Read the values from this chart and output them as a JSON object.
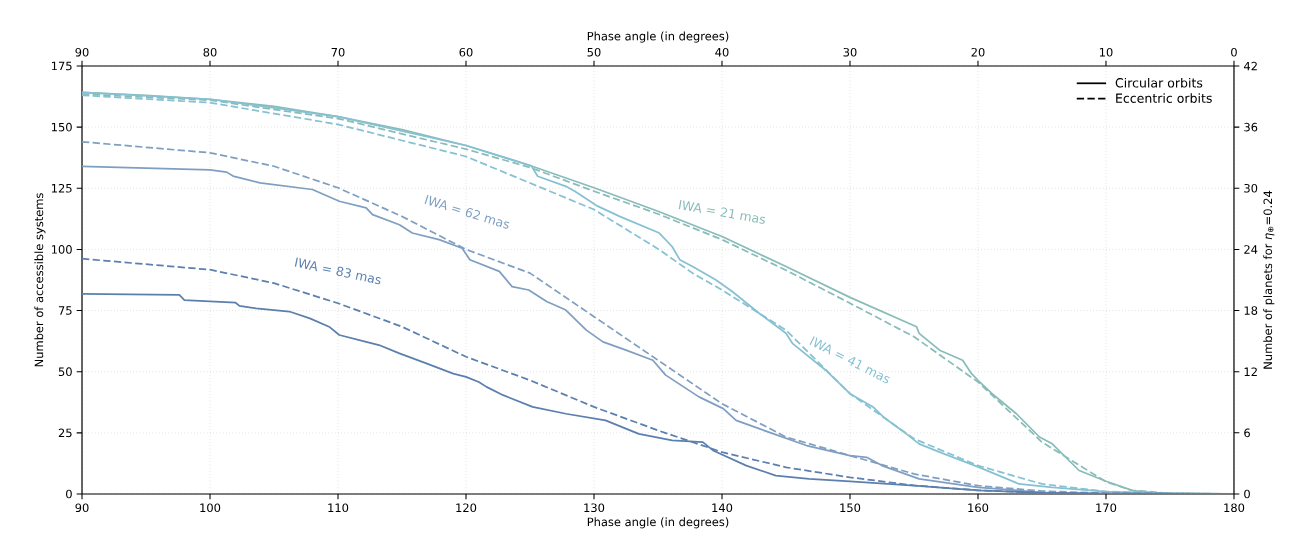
{
  "chart_data": {
    "type": "line",
    "xlabel": "Phase angle (in degrees)",
    "ylabel": "Number of accessible systems",
    "x2label": "Phase angle (in degrees)",
    "y2label": "Number of planets for *η*$_{⊕}$=0.24",
    "xlim": [
      90,
      180
    ],
    "xticks": [
      90,
      100,
      110,
      120,
      130,
      140,
      150,
      160,
      170,
      180
    ],
    "ylim": [
      0,
      175
    ],
    "yticks": [
      0,
      25,
      50,
      75,
      100,
      125,
      150,
      175
    ],
    "x2lim": [
      90,
      0
    ],
    "x2ticks": [
      90,
      80,
      70,
      60,
      50,
      40,
      30,
      20,
      10,
      0
    ],
    "y2lim": [
      0,
      42
    ],
    "y2ticks": [
      0,
      6,
      12,
      18,
      24,
      30,
      36,
      42
    ],
    "grid": true,
    "annotations": [
      "Circular orbits",
      "Eccentric orbits",
      "IWA = 21 mas",
      "IWA = 62 mas",
      "IWA = 83 mas",
      "IWA = 41 mas"
    ],
    "series": [
      {
        "color": "#88bcb9",
        "line_style": "solid",
        "x": [
          90,
          95,
          100,
          105,
          110,
          115,
          120,
          125,
          130,
          135,
          140,
          145,
          150,
          155.2,
          155.4,
          157,
          158.8,
          159.5,
          160,
          161.1,
          163,
          164.8,
          165.8,
          167.9,
          170,
          172.1,
          174.2,
          180
        ],
        "values": [
          164.2,
          163,
          161.4,
          158.5,
          154.3,
          149,
          142.5,
          134.3,
          125.2,
          115.6,
          105.3,
          93,
          80.4,
          68.4,
          65.7,
          58.8,
          54.7,
          49.2,
          46.5,
          41,
          32.8,
          23.3,
          20.5,
          9.6,
          5.2,
          1.4,
          0.3,
          0
        ]
      },
      {
        "color": "#88bcb9",
        "line_style": "dashed",
        "x": [
          90,
          100,
          110,
          120,
          125,
          130,
          135,
          140,
          145,
          150,
          155,
          160,
          165,
          170,
          172,
          175,
          180
        ],
        "values": [
          163.5,
          161,
          153.5,
          141,
          133.5,
          123.8,
          114.5,
          104,
          91.5,
          78,
          64.3,
          45.8,
          21.2,
          5,
          1.5,
          0.3,
          0
        ]
      },
      {
        "color": "#85c1d3",
        "line_style": "solid",
        "x": [
          90,
          100,
          110,
          120,
          125.1,
          125.6,
          127.8,
          128.5,
          129.9,
          130.2,
          132,
          135.1,
          136.1,
          136.7,
          137.7,
          139.5,
          140.8,
          142.9,
          145,
          145.5,
          148.1,
          150,
          151.8,
          152.6,
          154.4,
          155.4,
          157,
          160.1,
          163.2,
          165.8,
          170,
          175,
          180
        ],
        "values": [
          164.2,
          161.4,
          154.3,
          142.5,
          134.2,
          129.9,
          125.8,
          123.8,
          119,
          117.9,
          113.5,
          106.7,
          101.2,
          95.8,
          93,
          87.6,
          82.8,
          73.9,
          65.7,
          61.6,
          50.6,
          41,
          35.6,
          31.5,
          24.6,
          20.5,
          17.1,
          10.9,
          4.1,
          2.7,
          1,
          0.2,
          0
        ]
      },
      {
        "color": "#85c1d3",
        "line_style": "dashed",
        "x": [
          90,
          100,
          110,
          120,
          130,
          135.1,
          137.7,
          140,
          145,
          150,
          155,
          160,
          165,
          170,
          175,
          180
        ],
        "values": [
          163,
          160,
          151.1,
          138,
          116.3,
          99.9,
          90.3,
          83.4,
          67,
          41,
          22.6,
          11.6,
          4.1,
          1,
          0.2,
          0
        ]
      },
      {
        "color": "#7f9fc2",
        "line_style": "solid",
        "x": [
          90,
          100,
          101.3,
          101.8,
          103.9,
          108,
          110.1,
          112.2,
          112.7,
          114.8,
          115.8,
          117.9,
          119.7,
          120.3,
          122.6,
          123.6,
          124.9,
          126.3,
          127.8,
          129.4,
          130.7,
          132.5,
          134.6,
          135.6,
          138.2,
          140.1,
          141.1,
          142.9,
          146.6,
          150,
          151.3,
          152.5,
          155.4,
          160,
          165,
          170,
          180
        ],
        "values": [
          134,
          132.5,
          131.6,
          130,
          127.2,
          124.5,
          119.7,
          117,
          114.2,
          110.1,
          106.7,
          104,
          100.5,
          95.8,
          91,
          84.8,
          83.4,
          78.7,
          75.2,
          67,
          62.2,
          58.8,
          54.7,
          48.6,
          39.7,
          34.9,
          30.1,
          26.7,
          19.8,
          15.7,
          15,
          11.6,
          6.2,
          2.7,
          0.7,
          0.2,
          0
        ]
      },
      {
        "color": "#7f9fc2",
        "line_style": "dashed",
        "x": [
          90,
          100,
          105,
          110,
          115,
          120,
          125,
          130,
          135,
          140,
          145,
          150,
          155,
          160,
          165,
          170,
          180
        ],
        "values": [
          144,
          139.5,
          134,
          125.2,
          113.5,
          100,
          90.3,
          72.5,
          54.7,
          36.9,
          23.3,
          15.7,
          8.2,
          3.4,
          1.2,
          0.3,
          0
        ]
      },
      {
        "color": "#5b7fae",
        "line_style": "solid",
        "x": [
          90,
          97.6,
          98,
          102,
          102.3,
          103.6,
          106.2,
          107.8,
          109.3,
          110.1,
          112.2,
          113.2,
          114.8,
          116.9,
          119,
          120,
          121,
          121.6,
          122.9,
          125.2,
          127.8,
          130.9,
          133.5,
          136.1,
          138.5,
          139.3,
          141.9,
          144.2,
          146.8,
          150,
          155,
          160,
          165,
          170,
          180
        ],
        "values": [
          81.8,
          81.4,
          79.3,
          78.2,
          76.9,
          75.9,
          74.6,
          71.8,
          68.4,
          65,
          62.2,
          60.9,
          57.5,
          53.4,
          49.2,
          47.9,
          45.8,
          43.8,
          40.4,
          35.6,
          32.8,
          30.1,
          24.6,
          21.9,
          21.2,
          17.8,
          11.6,
          7.5,
          6.2,
          5.2,
          3.4,
          1.5,
          0.5,
          0.2,
          0
        ]
      },
      {
        "color": "#5b7fae",
        "line_style": "dashed",
        "x": [
          90,
          100,
          105,
          110,
          115,
          120,
          125,
          130,
          135,
          140,
          145,
          150,
          155,
          160,
          165,
          170,
          180
        ],
        "values": [
          96.2,
          91.7,
          86.2,
          78,
          68.4,
          56.1,
          46.5,
          35.6,
          26,
          17.1,
          10.9,
          6.8,
          3.5,
          1.5,
          0.5,
          0.2,
          0
        ]
      }
    ]
  }
}
